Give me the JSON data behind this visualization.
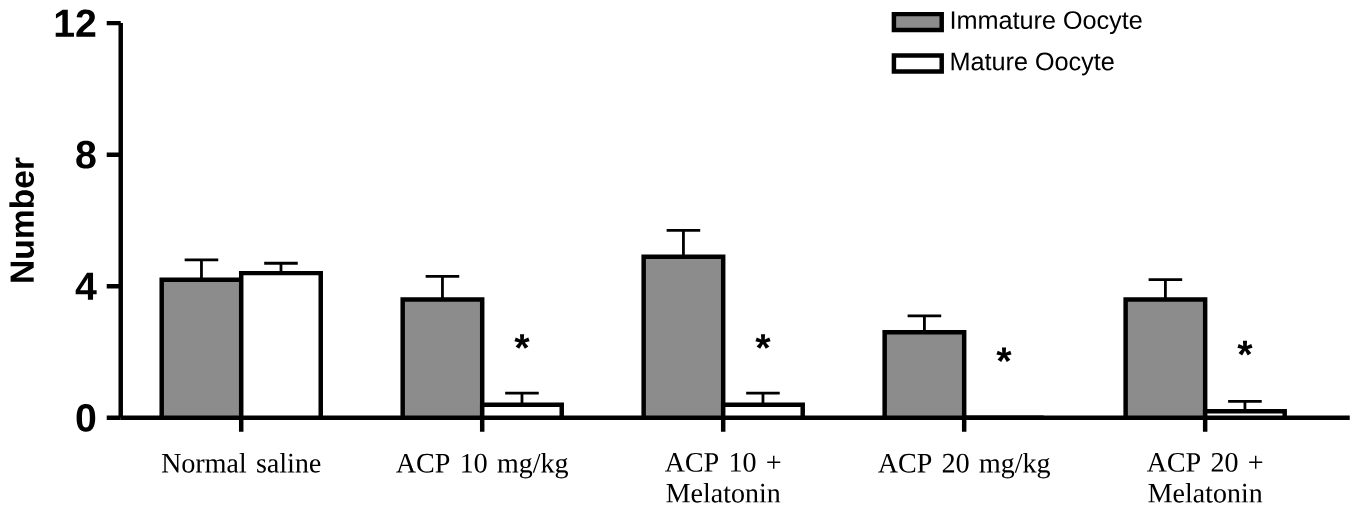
{
  "chart_data": {
    "type": "bar",
    "ylabel": "Number",
    "categories": [
      "Normal saline",
      "ACP 10 mg/kg",
      "ACP 10 + Melatonin",
      "ACP 20 mg/kg",
      "ACP 20 + Melatonin"
    ],
    "series": [
      {
        "name": "Immature Oocyte",
        "color": "#8c8c8c",
        "values": [
          4.2,
          3.6,
          4.9,
          2.6,
          3.6
        ],
        "errors": [
          [
            4.2,
            4.8
          ],
          [
            3.6,
            4.3
          ],
          [
            4.9,
            5.7
          ],
          [
            2.6,
            3.1
          ],
          [
            3.6,
            4.2
          ]
        ]
      },
      {
        "name": "Mature Oocyte",
        "color": "#ffffff",
        "values": [
          4.4,
          0.4,
          0.4,
          0,
          0.2
        ],
        "errors": [
          [
            4.4,
            4.7
          ],
          [
            0.4,
            0.75
          ],
          [
            0.4,
            0.75
          ],
          null,
          [
            0.2,
            0.5
          ]
        ]
      }
    ],
    "ylim": [
      0,
      12
    ],
    "yticks": [
      0,
      4,
      8,
      12
    ],
    "grid": false,
    "legend": "top right",
    "annotations": [
      {
        "text": "*",
        "x": "ACP 10 mg/kg",
        "y": 0.4
      },
      {
        "text": "*",
        "x": "ACP 10 + Melatonin",
        "y": 0.4
      },
      {
        "text": "*",
        "x": "ACP 20 mg/kg",
        "y": 0
      },
      {
        "text": "*",
        "x": "ACP 20 + Melatonin",
        "y": 0.2
      }
    ]
  }
}
